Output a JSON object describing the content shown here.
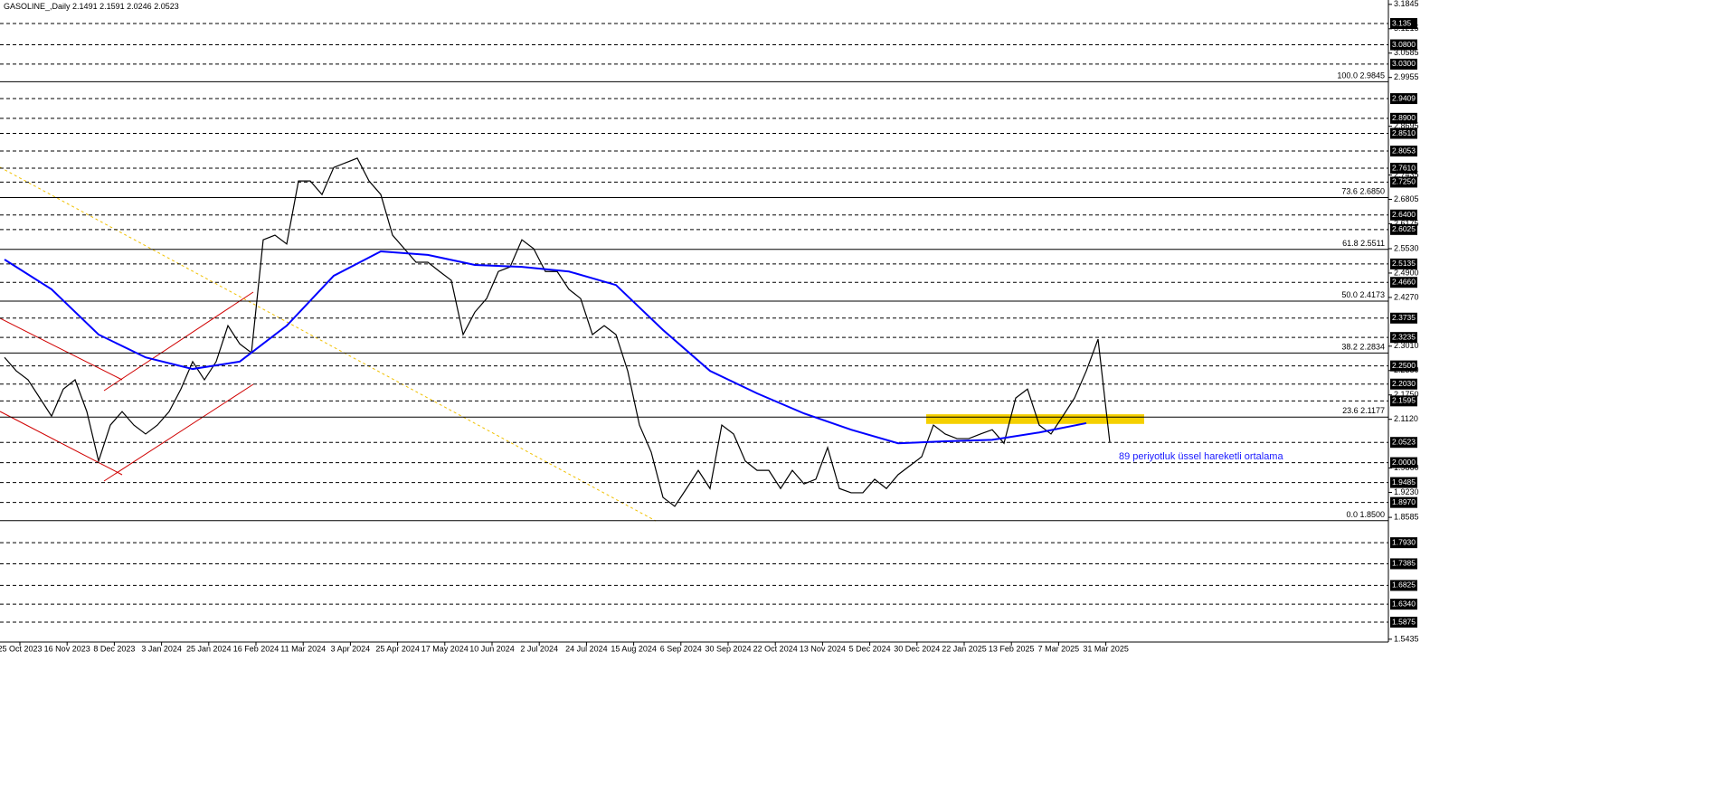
{
  "chart_data": {
    "type": "line",
    "symbol": "GASOLINE_,Daily",
    "ohlc": [
      2.1491,
      2.1591,
      2.0246,
      2.0523
    ],
    "annotation": "89 periyotluk üssel hareketli ortalama",
    "ylim": [
      1.5362,
      3.1958
    ],
    "x_labels": [
      "25 Oct 2023",
      "16 Nov 2023",
      "8 Dec 2023",
      "3 Jan 2024",
      "25 Jan 2024",
      "16 Feb 2024",
      "11 Mar 2024",
      "3 Apr 2024",
      "25 Apr 2024",
      "17 May 2024",
      "10 Jun 2024",
      "2 Jul 2024",
      "24 Jul 2024",
      "15 Aug 2024",
      "6 Sep 2024",
      "30 Sep 2024",
      "22 Oct 2024",
      "13 Nov 2024",
      "5 Dec 2024",
      "30 Dec 2024",
      "22 Jan 2025",
      "13 Feb 2025",
      "7 Mar 2025",
      "31 Mar 2025"
    ],
    "yticks": [
      3.1845,
      3.1215,
      3.0585,
      2.9955,
      2.8695,
      2.7435,
      2.6805,
      2.6175,
      {
        "value": 2.553,
        "label": "2.5530"
      },
      {
        "value": 2.49,
        "label": "2.4900"
      },
      {
        "value": 2.427,
        "label": "2.4270"
      },
      {
        "value": 2.301,
        "label": "2.3010"
      },
      {
        "value": 2.238,
        "label": "2.2380"
      },
      {
        "value": 2.175,
        "label": "2.1750"
      },
      {
        "value": 2.112,
        "label": "2.1120"
      },
      {
        "value": 1.986,
        "label": "1.9860"
      },
      {
        "value": 1.923,
        "label": "1.9230"
      },
      1.8585,
      1.5435
    ],
    "level_lines": [
      3.135,
      {
        "value": 3.08,
        "label": "3.0800"
      },
      {
        "value": 3.03,
        "label": "3.0300"
      },
      2.9409,
      {
        "value": 2.89,
        "label": "2.8900"
      },
      {
        "value": 2.851,
        "label": "2.8510"
      },
      2.8053,
      {
        "value": 2.761,
        "label": "2.7610"
      },
      {
        "value": 2.725,
        "label": "2.7250"
      },
      {
        "value": 2.64,
        "label": "2.6400"
      },
      2.6025,
      2.5135,
      {
        "value": 2.466,
        "label": "2.4660"
      },
      2.3735,
      2.3235,
      {
        "value": 2.25,
        "label": "2.2500"
      },
      {
        "value": 2.203,
        "label": "2.2030"
      },
      2.1595,
      2.0523,
      {
        "value": 2.0,
        "label": "2.0000"
      },
      1.9485,
      {
        "value": 1.897,
        "label": "1.8970"
      },
      {
        "value": 1.793,
        "label": "1.7930"
      },
      1.7385,
      1.6825,
      {
        "value": 1.634,
        "label": "1.6340"
      },
      1.5875
    ],
    "fib_levels": [
      {
        "level": "100.0",
        "price": 2.9845
      },
      {
        "level": "73.6",
        "price": {
          "value": 2.685,
          "label": "2.6850"
        }
      },
      {
        "level": "61.8",
        "price": 2.5511
      },
      {
        "level": "50.0",
        "price": 2.4173
      },
      {
        "level": "38.2",
        "price": 2.2834
      },
      {
        "level": "23.6",
        "price": 2.1177
      },
      {
        "level": "0.0",
        "price": {
          "value": 1.85,
          "label": "1.8500"
        }
      }
    ],
    "series": [
      {
        "color": "#000000",
        "values": [
          2.272,
          2.237,
          2.214,
          2.167,
          2.12,
          2.19,
          2.214,
          2.132,
          2.004,
          2.097,
          2.132,
          2.097,
          2.074,
          2.097,
          2.132,
          2.19,
          2.261,
          2.214,
          2.261,
          2.354,
          2.307,
          2.284,
          2.576,
          2.588,
          2.565,
          2.728,
          2.728,
          2.693,
          2.763,
          2.775,
          2.787,
          2.728,
          2.693,
          2.588,
          2.553,
          2.518,
          2.518,
          2.494,
          2.471,
          2.331,
          2.389,
          2.424,
          2.494,
          2.506,
          2.576,
          2.553,
          2.494,
          2.494,
          2.448,
          2.424,
          2.331,
          2.354,
          2.331,
          2.237,
          2.097,
          2.027,
          1.91,
          1.887,
          1.933,
          1.98,
          1.933,
          2.097,
          2.074,
          2.004,
          1.98,
          1.98,
          1.933,
          1.98,
          1.945,
          1.957,
          2.039,
          1.933,
          1.922,
          1.922,
          1.957,
          1.933,
          1.969,
          1.992,
          2.015,
          2.097,
          2.074,
          2.062,
          2.062,
          2.074,
          2.085,
          2.05,
          2.167,
          2.19,
          2.097,
          2.074,
          2.12,
          2.167,
          2.237,
          2.319,
          2.052
        ]
      },
      {
        "color": "#0000ff",
        "values": [
          2.525,
          2.448,
          2.331,
          2.272,
          2.242,
          2.261,
          2.354,
          2.483,
          2.546,
          2.537,
          2.511,
          2.506,
          2.494,
          2.459,
          2.343,
          2.237,
          2.179,
          2.127,
          2.085,
          2.05,
          2.055,
          2.059,
          2.078,
          2.102
        ]
      }
    ],
    "zone": {
      "color": "#f5d000",
      "low": 2.1,
      "high": 2.125
    }
  }
}
